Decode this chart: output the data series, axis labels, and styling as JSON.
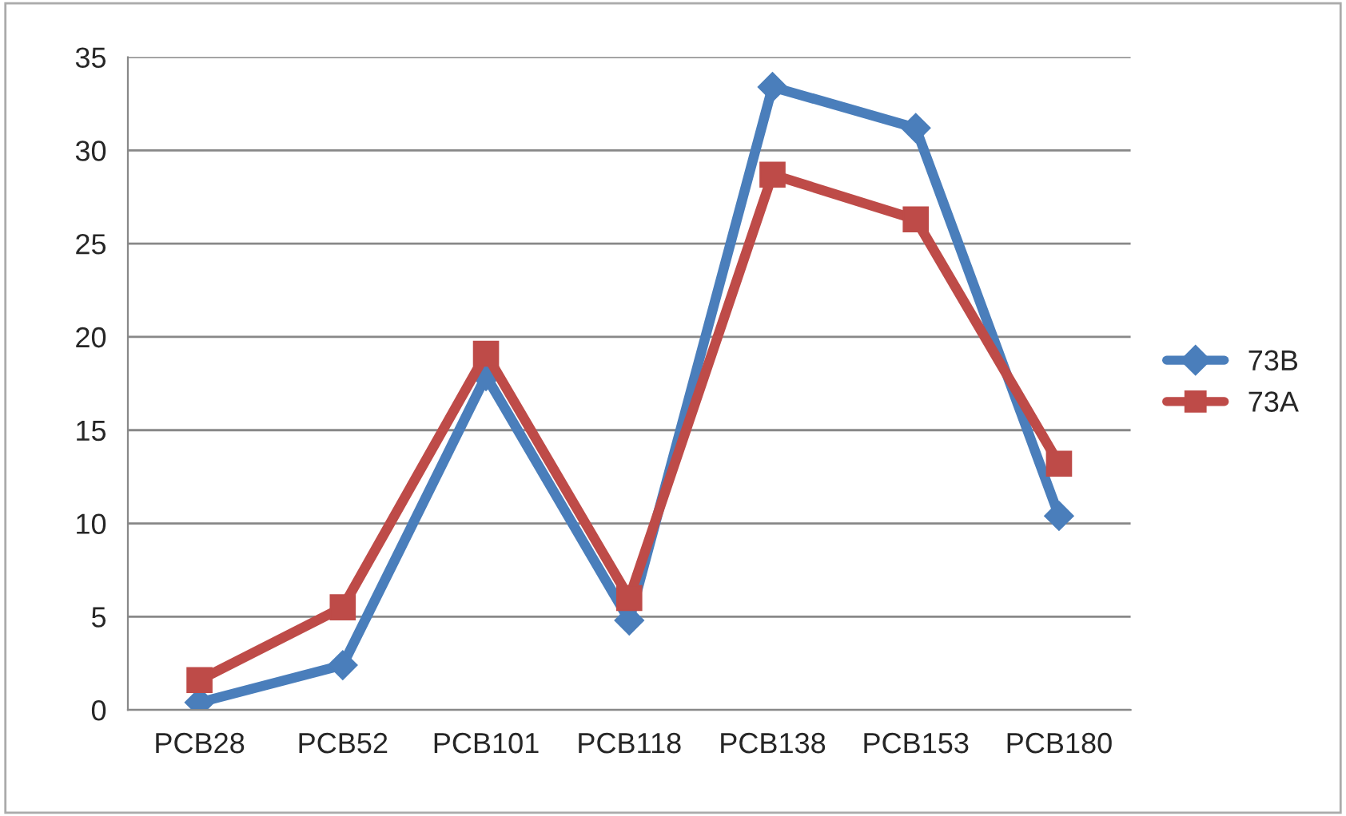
{
  "chart_data": {
    "type": "line",
    "categories": [
      "PCB28",
      "PCB52",
      "PCB101",
      "PCB118",
      "PCB138",
      "PCB153",
      "PCB180"
    ],
    "series": [
      {
        "name": "73B",
        "color": "#4a7ebb",
        "marker": "diamond",
        "values": [
          0.4,
          2.4,
          17.9,
          4.8,
          33.4,
          31.2,
          10.4
        ]
      },
      {
        "name": "73A",
        "color": "#be4b48",
        "marker": "square",
        "values": [
          1.6,
          5.5,
          19.1,
          6.0,
          28.7,
          26.3,
          13.2
        ]
      }
    ],
    "ylim": [
      0,
      35
    ],
    "yticks": [
      0,
      5,
      10,
      15,
      20,
      25,
      30,
      35
    ],
    "grid": "y",
    "legend": "right",
    "line_style": "solid"
  }
}
